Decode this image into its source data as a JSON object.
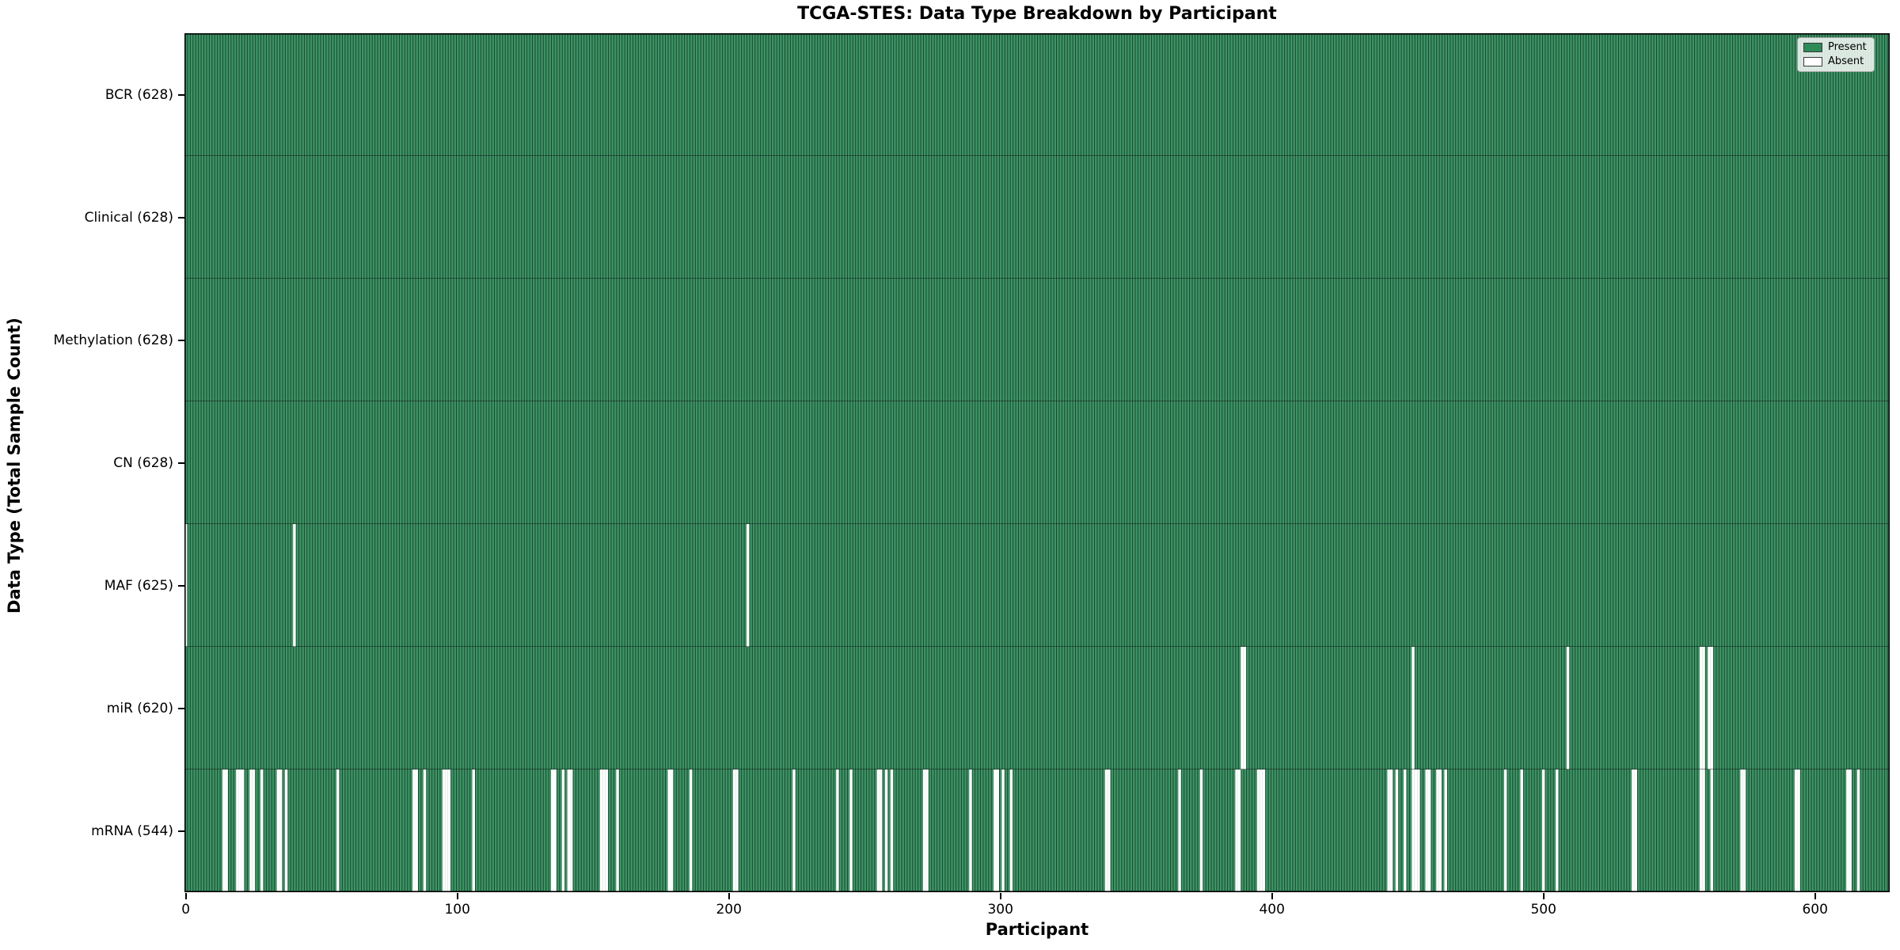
{
  "chart_data": {
    "type": "heatmap",
    "title": "TCGA-STES: Data Type Breakdown by Participant",
    "xlabel": "Participant",
    "ylabel": "Data Type (Total Sample Count)",
    "n_participants": 628,
    "x_ticks": [
      0,
      100,
      200,
      300,
      400,
      500,
      600
    ],
    "x_range": [
      -0.5,
      627.5
    ],
    "grid": false,
    "legend": {
      "position": "upper right",
      "items": [
        {
          "label": "Present",
          "color": "#2e8b57"
        },
        {
          "label": "Absent",
          "color": "#ffffff"
        }
      ]
    },
    "colors": {
      "present_fill": "#3c9565",
      "bar_edge": "#1c4530",
      "absent": "#ffffff",
      "row_separator": "#111111",
      "spine": "#000000"
    },
    "rows": [
      {
        "label": "BCR",
        "total": 628,
        "tick_label": "BCR (628)",
        "absent": []
      },
      {
        "label": "Clinical",
        "total": 628,
        "tick_label": "Clinical (628)",
        "absent": []
      },
      {
        "label": "Methylation",
        "total": 628,
        "tick_label": "Methylation (628)",
        "absent": []
      },
      {
        "label": "CN",
        "total": 628,
        "tick_label": "CN (628)",
        "absent": []
      },
      {
        "label": "MAF",
        "total": 625,
        "tick_label": "MAF (625)",
        "absent": [
          0,
          40,
          207
        ]
      },
      {
        "label": "miR",
        "total": 620,
        "tick_label": "miR (620)",
        "absent": [
          389,
          390,
          452,
          509,
          558,
          559,
          561,
          562
        ]
      },
      {
        "label": "mRNA",
        "total": 544,
        "tick_label": "mRNA (544)",
        "absent": [
          14,
          15,
          19,
          20,
          21,
          24,
          25,
          28,
          34,
          35,
          37,
          56,
          84,
          85,
          88,
          95,
          96,
          97,
          106,
          135,
          136,
          139,
          141,
          142,
          153,
          154,
          155,
          159,
          178,
          179,
          186,
          202,
          203,
          224,
          240,
          245,
          255,
          256,
          258,
          260,
          272,
          273,
          289,
          298,
          299,
          301,
          304,
          339,
          340,
          366,
          374,
          387,
          388,
          395,
          396,
          397,
          443,
          444,
          446,
          449,
          452,
          453,
          454,
          457,
          458,
          461,
          462,
          464,
          486,
          492,
          500,
          505,
          533,
          534,
          558,
          559,
          562,
          573,
          574,
          593,
          594,
          612,
          613,
          616
        ]
      }
    ]
  }
}
